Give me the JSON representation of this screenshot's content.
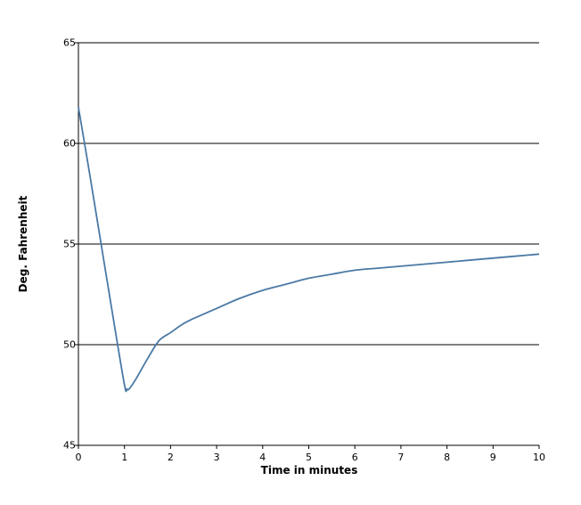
{
  "chart_data": {
    "type": "line",
    "title": "",
    "xlabel": "Time in minutes",
    "ylabel": "Deg. Fahrenheit",
    "xlim": [
      0,
      10
    ],
    "ylim": [
      45,
      65
    ],
    "x_ticks": [
      0,
      1,
      2,
      3,
      4,
      5,
      6,
      7,
      8,
      9,
      10
    ],
    "y_ticks": [
      45,
      50,
      55,
      60,
      65
    ],
    "grid": {
      "horizontal": true,
      "vertical": false
    },
    "legend": "none",
    "series": [
      {
        "color": "#4a79a5",
        "x": [
          0,
          0.25,
          0.5,
          0.75,
          1.0,
          1.05,
          1.1,
          1.25,
          1.5,
          1.75,
          2.0,
          2.25,
          2.5,
          3.0,
          3.5,
          4.0,
          4.5,
          5.0,
          5.5,
          6.0,
          6.5,
          7.0,
          7.5,
          8.0,
          8.5,
          9.0,
          9.5,
          10.0
        ],
        "y": [
          61.8,
          58.4,
          54.9,
          51.4,
          48.0,
          47.8,
          47.8,
          48.3,
          49.3,
          50.2,
          50.6,
          51.0,
          51.3,
          51.8,
          52.3,
          52.7,
          53.0,
          53.3,
          53.5,
          53.7,
          53.8,
          53.9,
          54.0,
          54.1,
          54.2,
          54.3,
          54.4,
          54.5
        ]
      }
    ]
  }
}
